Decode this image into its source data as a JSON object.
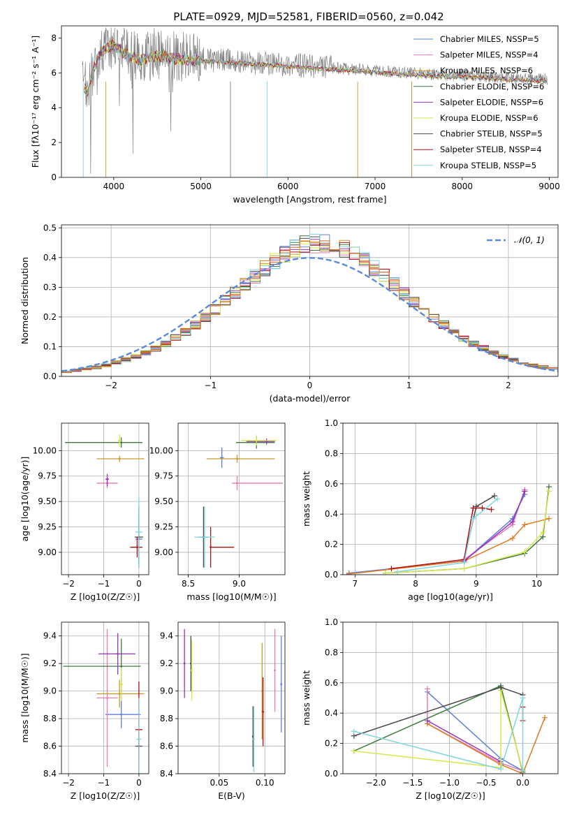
{
  "title": "PLATE=0929, MJD=52581, FIBERID=0560, z=0.042",
  "colors": {
    "chabrier_miles": "#5f7fd8",
    "salpeter_miles": "#e879b5",
    "kroupa_miles": "#c89a2a",
    "chabrier_elodie": "#3d7a3d",
    "salpeter_elodie": "#9933bb",
    "kroupa_elodie": "#d7e64a",
    "chabrier_stelib": "#4a4a4a",
    "salpeter_stelib": "#b01010",
    "kroupa_stelib": "#7fd6e0",
    "data_grey": "#808080",
    "orange": "#e07820",
    "gaussian": "#5a8ad8"
  },
  "chart_data": [
    {
      "id": "spectrum",
      "type": "line",
      "xlabel": "wavelength [Angstrom, rest frame]",
      "ylabel": "Flux [fλ10⁻¹⁷ erg cm⁻² s⁻¹ A⁻¹]",
      "xlim": [
        3400,
        9100
      ],
      "ylim": [
        0,
        8.7
      ],
      "xticks": [
        4000,
        5000,
        6000,
        7000,
        8000,
        9000
      ],
      "yticks": [
        0,
        2,
        4,
        6,
        8
      ],
      "grid": false,
      "legend_position": "top-right",
      "legend": [
        {
          "label": "Chabrier MILES, NSSP=5",
          "color_key": "chabrier_miles"
        },
        {
          "label": "Salpeter MILES, NSSP=4",
          "color_key": "salpeter_miles"
        },
        {
          "label": "Kroupa MILES, NSSP=6",
          "color_key": "kroupa_miles"
        },
        {
          "label": "Chabrier ELODIE, NSSP=6",
          "color_key": "chabrier_elodie"
        },
        {
          "label": "Salpeter ELODIE, NSSP=6",
          "color_key": "salpeter_elodie"
        },
        {
          "label": "Kroupa ELODIE, NSSP=6",
          "color_key": "kroupa_elodie"
        },
        {
          "label": "Chabrier STELIB, NSSP=5",
          "color_key": "chabrier_stelib"
        },
        {
          "label": "Salpeter STELIB, NSSP=4",
          "color_key": "salpeter_stelib"
        },
        {
          "label": "Kroupa STELIB, NSSP=5",
          "color_key": "kroupa_stelib"
        }
      ],
      "model_continuum": {
        "x": [
          3650,
          3700,
          3750,
          3800,
          3900,
          4000,
          4100,
          4200,
          4300,
          4400,
          4500,
          4700,
          5000,
          5300,
          5600,
          5900,
          6200,
          6500,
          6800,
          7100,
          7400,
          7700,
          8000,
          8300,
          8600,
          8900
        ],
        "y": [
          5.3,
          5.0,
          5.9,
          6.8,
          7.5,
          7.7,
          7.3,
          7.0,
          6.8,
          7.0,
          7.1,
          6.9,
          6.8,
          6.7,
          6.6,
          6.5,
          6.4,
          6.3,
          6.2,
          6.1,
          6.0,
          5.9,
          5.85,
          5.8,
          5.7,
          5.65
        ]
      }
    },
    {
      "id": "residuals",
      "type": "line",
      "xlabel": "(data-model)/error",
      "ylabel": "Normed distribution",
      "xlim": [
        -2.5,
        2.5
      ],
      "ylim": [
        0,
        0.51
      ],
      "xticks": [
        -2,
        -1,
        0,
        1,
        2
      ],
      "yticks": [
        0.0,
        0.1,
        0.2,
        0.3,
        0.4,
        0.5
      ],
      "grid": true,
      "legend_position": "top-right",
      "legend": [
        {
          "label": "𝒩(0, 1)",
          "style": "dashed"
        }
      ],
      "normal_mean": 0,
      "normal_sigma": 1,
      "hist_bin_width": 0.1,
      "hist_base": [
        0.017,
        0.021,
        0.026,
        0.031,
        0.038,
        0.046,
        0.056,
        0.067,
        0.079,
        0.094,
        0.11,
        0.129,
        0.15,
        0.173,
        0.198,
        0.224,
        0.252,
        0.28,
        0.309,
        0.337,
        0.364,
        0.389,
        0.411,
        0.429,
        0.441,
        0.448,
        0.447,
        0.44,
        0.428,
        0.411,
        0.389,
        0.364,
        0.337,
        0.309,
        0.28,
        0.252,
        0.224,
        0.198,
        0.173,
        0.15,
        0.129,
        0.11,
        0.094,
        0.079,
        0.067,
        0.056,
        0.046,
        0.038,
        0.031,
        0.026
      ]
    },
    {
      "id": "age_vs_Z",
      "type": "scatter",
      "xlabel": "Z [log10(Z/Z☉)]",
      "ylabel": "age  [log10(age/yr)]",
      "xlim": [
        -2.2,
        0.28
      ],
      "ylim": [
        8.78,
        10.27
      ],
      "xticks": [
        -2,
        -1,
        0
      ],
      "yticks": [
        9.0,
        9.25,
        9.5,
        9.75,
        10.0
      ],
      "grid": true,
      "points": [
        {
          "color_key": "chabrier_miles",
          "x": 0.0,
          "y": 9.13,
          "xerr": [
            0.1,
            0.1
          ],
          "yerr": [
            0.24,
            0.24
          ]
        },
        {
          "color_key": "salpeter_miles",
          "x": -0.9,
          "y": 9.68,
          "xerr": [
            0.3,
            0.3
          ],
          "yerr": [
            0.05,
            0.05
          ]
        },
        {
          "color_key": "kroupa_miles",
          "x": -0.55,
          "y": 9.92,
          "xerr": [
            0.65,
            0.7
          ],
          "yerr": [
            0.03,
            0.03
          ]
        },
        {
          "color_key": "chabrier_elodie",
          "x": -0.5,
          "y": 10.08,
          "xerr": [
            1.6,
            0.6
          ],
          "yerr": [
            0.05,
            0.05
          ]
        },
        {
          "color_key": "salpeter_elodie",
          "x": -0.9,
          "y": 9.72,
          "xerr": [
            0.05,
            0.05
          ],
          "yerr": [
            0.07,
            0.05
          ]
        },
        {
          "color_key": "kroupa_elodie",
          "x": -0.55,
          "y": 10.1,
          "xerr": [
            0.05,
            0.05
          ],
          "yerr": [
            0.06,
            0.06
          ]
        },
        {
          "color_key": "chabrier_stelib",
          "x": 0.0,
          "y": 9.15,
          "xerr": [
            0.12,
            0.12
          ],
          "yerr": [
            0.3,
            0.3
          ]
        },
        {
          "color_key": "salpeter_stelib",
          "x": -0.05,
          "y": 9.05,
          "xerr": [
            0.2,
            0.15
          ],
          "yerr": [
            0.1,
            0.1
          ]
        },
        {
          "color_key": "kroupa_stelib",
          "x": 0.0,
          "y": 9.2,
          "xerr": [
            0.1,
            0.1
          ],
          "yerr": [
            0.35,
            0.35
          ]
        }
      ]
    },
    {
      "id": "age_vs_mass",
      "type": "scatter",
      "xlabel": "mass [log10(M/M☉)]",
      "ylabel": "",
      "xlim": [
        8.4,
        9.45
      ],
      "ylim": [
        8.78,
        10.27
      ],
      "xticks": [
        8.5,
        9.0
      ],
      "yticks": [
        9.0,
        9.25,
        9.5,
        9.75,
        10.0
      ],
      "grid": true,
      "points": [
        {
          "color_key": "chabrier_miles",
          "x": 8.83,
          "y": 9.93,
          "xerr": [
            0.02,
            0.02
          ],
          "yerr": [
            0.1,
            0.1
          ]
        },
        {
          "color_key": "salpeter_miles",
          "x": 8.98,
          "y": 9.68,
          "xerr": [
            0.05,
            0.45
          ],
          "yerr": [
            0.07,
            0.07
          ]
        },
        {
          "color_key": "kroupa_miles",
          "x": 8.98,
          "y": 9.92,
          "xerr": [
            0.3,
            0.37
          ],
          "yerr": [
            0.04,
            0.04
          ]
        },
        {
          "color_key": "chabrier_elodie",
          "x": 9.17,
          "y": 10.08,
          "xerr": [
            0.2,
            0.18
          ],
          "yerr": [
            0.06,
            0.06
          ]
        },
        {
          "color_key": "salpeter_elodie",
          "x": 9.27,
          "y": 10.09,
          "xerr": [
            0.2,
            0.08
          ],
          "yerr": [
            0.03,
            0.03
          ]
        },
        {
          "color_key": "kroupa_elodie",
          "x": 9.17,
          "y": 10.1,
          "xerr": [
            0.15,
            0.2
          ],
          "yerr": [
            0.05,
            0.05
          ]
        },
        {
          "color_key": "chabrier_stelib",
          "x": 8.65,
          "y": 9.15,
          "xerr": [
            0.05,
            0.05
          ],
          "yerr": [
            0.3,
            0.3
          ]
        },
        {
          "color_key": "salpeter_stelib",
          "x": 8.72,
          "y": 9.05,
          "xerr": [
            0.0,
            0.23
          ],
          "yerr": [
            0.2,
            0.2
          ]
        },
        {
          "color_key": "kroupa_stelib",
          "x": 8.66,
          "y": 9.15,
          "xerr": [
            0.1,
            0.1
          ],
          "yerr": [
            0.3,
            0.3
          ]
        }
      ]
    },
    {
      "id": "mass_weight_vs_age",
      "type": "line",
      "xlabel": "age  [log10(age/yr)]",
      "ylabel": "mass weight",
      "xlim": [
        6.8,
        10.35
      ],
      "ylim": [
        0,
        1.0
      ],
      "xticks": [
        7,
        8,
        9,
        10
      ],
      "yticks": [
        0.0,
        0.2,
        0.4,
        0.6,
        0.8,
        1.0
      ],
      "grid": true,
      "series": [
        {
          "color_key": "chabrier_miles",
          "x": [
            6.9,
            8.8,
            9.6,
            9.8
          ],
          "y": [
            0.01,
            0.09,
            0.37,
            0.53
          ]
        },
        {
          "color_key": "salpeter_miles",
          "x": [
            8.8,
            9.6,
            9.8
          ],
          "y": [
            0.1,
            0.33,
            0.56
          ]
        },
        {
          "color_key": "orange",
          "x": [
            6.9,
            8.8,
            9.6,
            9.8,
            10.2
          ],
          "y": [
            0.005,
            0.09,
            0.24,
            0.33,
            0.37
          ]
        },
        {
          "color_key": "chabrier_elodie",
          "x": [
            7.5,
            8.8,
            9.8,
            10.1,
            10.2
          ],
          "y": [
            0.01,
            0.04,
            0.14,
            0.25,
            0.58
          ]
        },
        {
          "color_key": "salpeter_elodie",
          "x": [
            8.8,
            9.6,
            9.8
          ],
          "y": [
            0.09,
            0.35,
            0.55
          ]
        },
        {
          "color_key": "kroupa_elodie",
          "x": [
            7.5,
            8.8,
            9.8,
            10.1,
            10.2
          ],
          "y": [
            0.01,
            0.04,
            0.15,
            0.28,
            0.55
          ]
        },
        {
          "color_key": "chabrier_stelib",
          "x": [
            8.8,
            9.0,
            9.3
          ],
          "y": [
            0.1,
            0.45,
            0.52
          ]
        },
        {
          "color_key": "salpeter_stelib",
          "x": [
            7.6,
            8.8,
            8.95,
            9.1,
            9.25
          ],
          "y": [
            0.04,
            0.1,
            0.44,
            0.44,
            0.43
          ]
        },
        {
          "color_key": "kroupa_stelib",
          "x": [
            7.7,
            8.8,
            8.95,
            9.35
          ],
          "y": [
            0.02,
            0.08,
            0.37,
            0.5
          ]
        }
      ]
    },
    {
      "id": "mass_vs_Z",
      "type": "scatter",
      "xlabel": "Z [log10(Z/Z☉)]",
      "ylabel": "mass [log10(M/M☉)]",
      "xlim": [
        -2.2,
        0.28
      ],
      "ylim": [
        8.4,
        9.5
      ],
      "xticks": [
        -2,
        -1,
        0
      ],
      "yticks": [
        8.4,
        8.6,
        8.8,
        9.0,
        9.2,
        9.4
      ],
      "grid": true,
      "points": [
        {
          "color_key": "chabrier_miles",
          "x": -0.5,
          "y": 8.83,
          "xerr": [
            0.45,
            0.55
          ],
          "yerr": [
            0.1,
            0.1
          ]
        },
        {
          "color_key": "salpeter_miles",
          "x": -0.9,
          "y": 8.95,
          "xerr": [
            0.3,
            0.3
          ],
          "yerr": [
            0.5,
            0.5
          ]
        },
        {
          "color_key": "kroupa_miles",
          "x": -0.55,
          "y": 8.98,
          "xerr": [
            0.65,
            0.7
          ],
          "yerr": [
            0.1,
            0.1
          ]
        },
        {
          "color_key": "chabrier_elodie",
          "x": -0.5,
          "y": 9.18,
          "xerr": [
            1.65,
            0.55
          ],
          "yerr": [
            0.2,
            0.2
          ]
        },
        {
          "color_key": "salpeter_elodie",
          "x": -0.6,
          "y": 9.27,
          "xerr": [
            0.55,
            0.5
          ],
          "yerr": [
            0.15,
            0.15
          ]
        },
        {
          "color_key": "kroupa_elodie",
          "x": -0.5,
          "y": 9.05,
          "xerr": [
            0.05,
            0.05
          ],
          "yerr": [
            0.12,
            0.12
          ]
        },
        {
          "color_key": "chabrier_stelib",
          "x": 0.0,
          "y": 8.6,
          "xerr": [
            0.1,
            0.1
          ],
          "yerr": [
            0.1,
            0.1
          ]
        },
        {
          "color_key": "salpeter_stelib",
          "x": 0.0,
          "y": 8.72,
          "xerr": [
            0.1,
            0.1
          ],
          "yerr": [
            0.35,
            0.35
          ]
        },
        {
          "color_key": "kroupa_stelib",
          "x": 0.0,
          "y": 8.65,
          "xerr": [
            0.07,
            0.07
          ],
          "yerr": [
            0.3,
            0.3
          ]
        }
      ]
    },
    {
      "id": "mass_vs_ebv",
      "type": "scatter",
      "xlabel": "E(B-V)",
      "ylabel": "",
      "xlim": [
        0.005,
        0.122
      ],
      "ylim": [
        8.4,
        9.5
      ],
      "xticks": [
        0.05,
        0.1
      ],
      "yticks": [
        8.4,
        8.6,
        8.8,
        9.0,
        9.2,
        9.4
      ],
      "grid": true,
      "points": [
        {
          "color_key": "salpeter_elodie",
          "x": 0.012,
          "y": 9.2,
          "yerr": [
            0.25,
            0.25
          ]
        },
        {
          "color_key": "chabrier_stelib",
          "x": 0.019,
          "y": 9.2,
          "yerr": [
            0.2,
            0.2
          ]
        },
        {
          "color_key": "kroupa_elodie",
          "x": 0.02,
          "y": 9.15,
          "yerr": [
            0.22,
            0.22
          ]
        },
        {
          "color_key": "chabrier_stelib",
          "x": 0.087,
          "y": 8.67,
          "yerr": [
            0.22,
            0.22
          ]
        },
        {
          "color_key": "kroupa_stelib",
          "x": 0.088,
          "y": 8.65,
          "yerr": [
            0.24,
            0.24
          ]
        },
        {
          "color_key": "kroupa_miles",
          "x": 0.097,
          "y": 9.0,
          "yerr": [
            0.35,
            0.35
          ]
        },
        {
          "color_key": "salpeter_stelib",
          "x": 0.098,
          "y": 8.85,
          "yerr": [
            0.25,
            0.25
          ]
        },
        {
          "color_key": "salpeter_miles",
          "x": 0.111,
          "y": 9.15,
          "yerr": [
            0.3,
            0.3
          ]
        },
        {
          "color_key": "chabrier_miles",
          "x": 0.118,
          "y": 9.05,
          "yerr": [
            0.35,
            0.35
          ]
        }
      ]
    },
    {
      "id": "mass_weight_vs_Z",
      "type": "line",
      "xlabel": "Z [log10(Z/Z☉)]",
      "ylabel": "mass weight",
      "xlim": [
        -2.45,
        0.48
      ],
      "ylim": [
        0,
        1.0
      ],
      "xticks": [
        -2.0,
        -1.5,
        -1.0,
        -0.5,
        0.0
      ],
      "yticks": [
        0.0,
        0.2,
        0.4,
        0.6,
        0.8,
        1.0
      ],
      "grid": true,
      "series": [
        {
          "color_key": "chabrier_miles",
          "x": [
            -1.3,
            -0.3,
            0.0
          ],
          "y": [
            0.54,
            0.1,
            0.02
          ]
        },
        {
          "color_key": "salpeter_miles",
          "x": [
            -1.3,
            -1.3,
            -0.3,
            0.0
          ],
          "y": [
            0.56,
            0.33,
            0.07,
            0.02
          ]
        },
        {
          "color_key": "orange",
          "x": [
            -1.3,
            -0.3,
            0.0,
            0.3
          ],
          "y": [
            0.33,
            0.06,
            0.0,
            0.37
          ]
        },
        {
          "color_key": "chabrier_elodie",
          "x": [
            -2.3,
            -0.3,
            0.0
          ],
          "y": [
            0.15,
            0.58,
            0.01
          ]
        },
        {
          "color_key": "salpeter_elodie",
          "x": [
            -1.3,
            -0.3
          ],
          "y": [
            0.35,
            0.08
          ]
        },
        {
          "color_key": "kroupa_elodie",
          "x": [
            -2.3,
            -0.3,
            -0.3,
            0.0
          ],
          "y": [
            0.15,
            0.04,
            0.55,
            0.02
          ]
        },
        {
          "color_key": "chabrier_stelib",
          "x": [
            -2.3,
            -0.3,
            0.0
          ],
          "y": [
            0.25,
            0.57,
            0.52
          ]
        },
        {
          "color_key": "salpeter_stelib",
          "x": [
            0.0,
            0.0
          ],
          "y": [
            0.44,
            0.35
          ]
        },
        {
          "color_key": "kroupa_stelib",
          "x": [
            -2.3,
            -0.3,
            0.0,
            0.0
          ],
          "y": [
            0.28,
            0.03,
            0.5,
            0.02
          ]
        }
      ]
    }
  ]
}
